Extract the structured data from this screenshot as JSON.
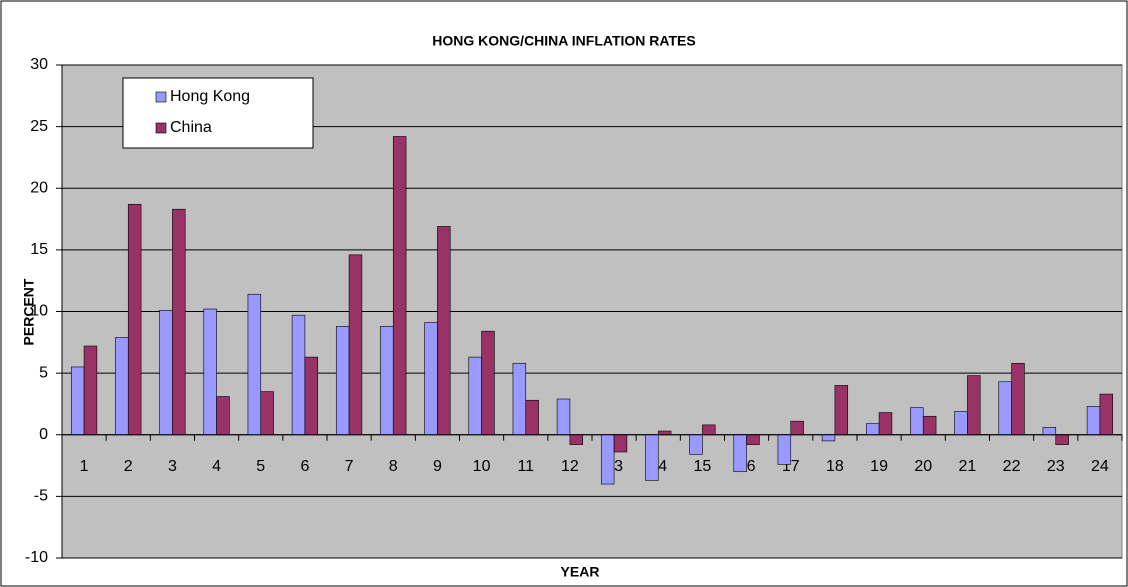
{
  "chart_data": {
    "type": "bar",
    "title": "HONG KONG/CHINA INFLATION  RATES",
    "x_label": "YEAR",
    "y_label": "PERCENT",
    "categories": [
      1,
      2,
      3,
      4,
      5,
      6,
      7,
      8,
      9,
      10,
      11,
      12,
      13,
      14,
      15,
      16,
      17,
      18,
      19,
      20,
      21,
      22,
      23,
      24
    ],
    "series": [
      {
        "name": "Hong Kong",
        "color": "#9999ff",
        "values": [
          5.5,
          7.9,
          10.1,
          10.2,
          11.4,
          9.7,
          8.8,
          8.8,
          9.1,
          6.3,
          5.8,
          2.9,
          -4.0,
          -3.7,
          -1.6,
          -3.0,
          -2.4,
          -0.5,
          0.9,
          2.2,
          1.9,
          4.3,
          0.6,
          2.3
        ]
      },
      {
        "name": "China",
        "color": "#993366",
        "values": [
          7.2,
          18.7,
          18.3,
          3.1,
          3.5,
          6.3,
          14.6,
          24.2,
          16.9,
          8.4,
          2.8,
          -0.8,
          -1.4,
          0.3,
          0.8,
          -0.8,
          1.1,
          4.0,
          1.8,
          1.5,
          4.8,
          5.8,
          -0.8,
          3.3
        ]
      }
    ],
    "ylim": [
      -10,
      30
    ],
    "yticks": [
      -10,
      -5,
      0,
      5,
      10,
      15,
      20,
      25,
      30
    ],
    "grid": true,
    "legend": "upper left"
  }
}
